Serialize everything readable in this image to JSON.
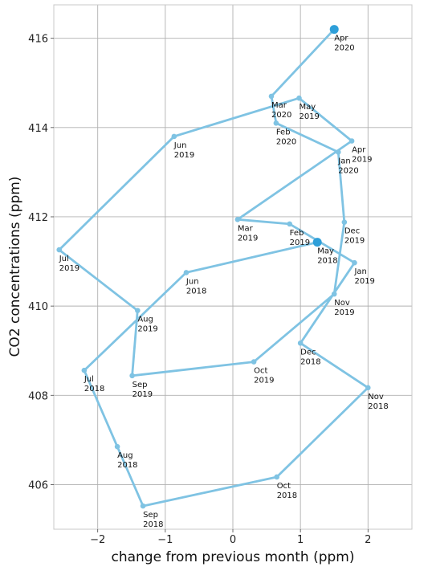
{
  "chart_data": {
    "type": "line",
    "xlabel": "change from previous month (ppm)",
    "ylabel": "CO2 concentrations (ppm)",
    "xlim": [
      -2.65,
      2.65
    ],
    "ylim": [
      405.0,
      416.75
    ],
    "xticks": [
      -2,
      -1,
      0,
      1,
      2
    ],
    "yticks": [
      406,
      408,
      410,
      412,
      414,
      416
    ],
    "xtick_labels": [
      "−2",
      "−1",
      "0",
      "1",
      "2"
    ],
    "ytick_labels": [
      "406",
      "408",
      "410",
      "412",
      "414",
      "416"
    ],
    "grid": true,
    "line_color": "#7fc3e3",
    "highlight_color": "#2e9fd9",
    "points": [
      {
        "line1": "May",
        "line2": "2018",
        "x": 1.25,
        "y": 411.43,
        "highlight": true
      },
      {
        "line1": "Jun",
        "line2": "2018",
        "x": -0.69,
        "y": 410.75
      },
      {
        "line1": "Jul",
        "line2": "2018",
        "x": -2.2,
        "y": 408.56
      },
      {
        "line1": "Aug",
        "line2": "2018",
        "x": -1.71,
        "y": 406.85
      },
      {
        "line1": "Sep",
        "line2": "2018",
        "x": -1.33,
        "y": 405.52
      },
      {
        "line1": "Oct",
        "line2": "2018",
        "x": 0.65,
        "y": 406.17
      },
      {
        "line1": "Nov",
        "line2": "2018",
        "x": 2.0,
        "y": 408.17
      },
      {
        "line1": "Dec",
        "line2": "2018",
        "x": 1.0,
        "y": 409.17
      },
      {
        "line1": "Jan",
        "line2": "2019",
        "x": 1.8,
        "y": 410.97
      },
      {
        "line1": "Feb",
        "line2": "2019",
        "x": 0.84,
        "y": 411.84
      },
      {
        "line1": "Mar",
        "line2": "2019",
        "x": 0.07,
        "y": 411.94
      },
      {
        "line1": "Apr",
        "line2": "2019",
        "x": 1.76,
        "y": 413.7
      },
      {
        "line1": "May",
        "line2": "2019",
        "x": 0.98,
        "y": 414.66
      },
      {
        "line1": "Jun",
        "line2": "2019",
        "x": -0.87,
        "y": 413.8
      },
      {
        "line1": "Jul",
        "line2": "2019",
        "x": -2.57,
        "y": 411.26
      },
      {
        "line1": "Aug",
        "line2": "2019",
        "x": -1.41,
        "y": 409.9
      },
      {
        "line1": "Sep",
        "line2": "2019",
        "x": -1.49,
        "y": 408.44
      },
      {
        "line1": "Oct",
        "line2": "2019",
        "x": 0.31,
        "y": 408.75
      },
      {
        "line1": "Nov",
        "line2": "2019",
        "x": 1.5,
        "y": 410.27
      },
      {
        "line1": "Dec",
        "line2": "2019",
        "x": 1.65,
        "y": 411.88
      },
      {
        "line1": "Jan",
        "line2": "2020",
        "x": 1.56,
        "y": 413.45
      },
      {
        "line1": "Feb",
        "line2": "2020",
        "x": 0.64,
        "y": 414.1
      },
      {
        "line1": "Mar",
        "line2": "2020",
        "x": 0.57,
        "y": 414.7
      },
      {
        "line1": "Apr",
        "line2": "2020",
        "x": 1.5,
        "y": 416.2,
        "highlight": true
      }
    ]
  }
}
